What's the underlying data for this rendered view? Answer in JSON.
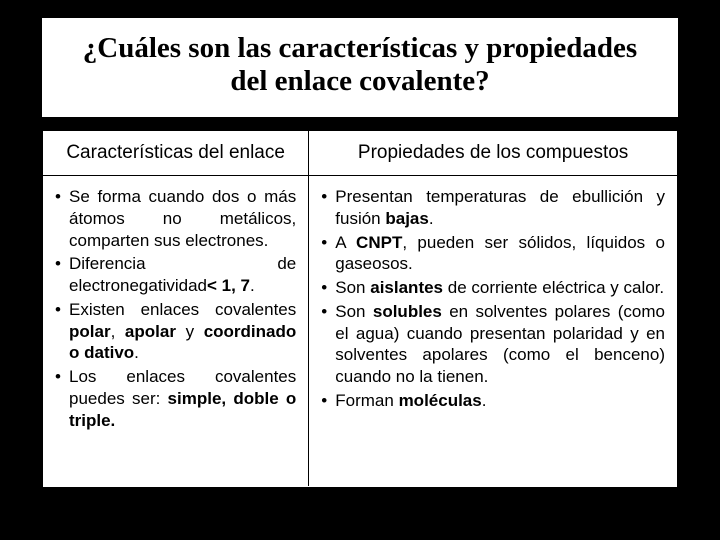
{
  "title": "¿Cuáles son las características y propiedades del enlace covalente?",
  "headers": {
    "left": "Características del enlace",
    "right": "Propiedades de los compuestos"
  },
  "left_items": [
    {
      "pre": "Se forma cuando dos o más átomos no metálicos, comparten sus electrones."
    },
    {
      "pre": "Diferencia de electronegatividad",
      "bold": "< 1, 7",
      "post": "."
    },
    {
      "pre": "Existen enlaces covalentes ",
      "bold": "polar",
      "mid": ", ",
      "bold2": "apolar",
      "mid2": " y ",
      "bold3": "coordinado o dativo",
      "post": "."
    },
    {
      "pre": "Los enlaces covalentes puedes ser: ",
      "bold": "simple, doble o triple."
    }
  ],
  "right_items": [
    {
      "pre": "Presentan temperaturas de ebullición y fusión ",
      "bold": "bajas",
      "post": "."
    },
    {
      "pre": "A ",
      "bold": "CNPT",
      "post": ", pueden ser sólidos, líquidos o gaseosos."
    },
    {
      "pre": "Son ",
      "bold": "aislantes",
      "post": " de corriente eléctrica y calor."
    },
    {
      "pre": "Son ",
      "bold": "solubles",
      "post": " en solventes polares (como el agua) cuando presentan polaridad y en solventes apolares (como el benceno) cuando no la tienen."
    },
    {
      "pre": "Forman ",
      "bold": "moléculas",
      "post": "."
    }
  ]
}
